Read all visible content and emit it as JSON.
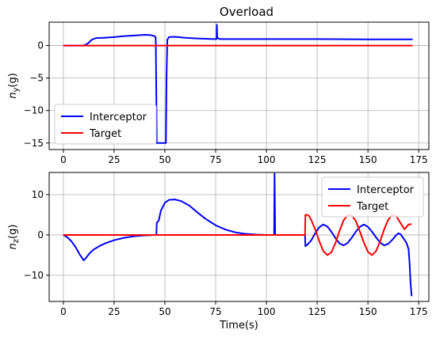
{
  "figure_title": "Overload",
  "chart_data": [
    {
      "type": "line",
      "ylabel_base": "n",
      "ylabel_sub": "y",
      "ylabel_unit": "(g)",
      "xlabel": "",
      "xlim": [
        -7,
        180
      ],
      "ylim": [
        -16,
        3.6
      ],
      "xticks": [
        0,
        25,
        50,
        75,
        100,
        125,
        150,
        175
      ],
      "yticks": [
        0,
        -5,
        -10,
        -15
      ],
      "grid": true,
      "legend": "lower-left",
      "series": [
        {
          "name": "Interceptor",
          "color": "#0000ff",
          "points": [
            [
              0,
              0
            ],
            [
              10,
              0
            ],
            [
              12,
              0.3
            ],
            [
              14,
              0.9
            ],
            [
              16,
              1.15
            ],
            [
              20,
              1.2
            ],
            [
              25,
              1.3
            ],
            [
              30,
              1.45
            ],
            [
              35,
              1.55
            ],
            [
              40,
              1.65
            ],
            [
              43,
              1.6
            ],
            [
              45,
              1.45
            ],
            [
              45.5,
              1.2
            ],
            [
              46,
              -15
            ],
            [
              47,
              -15
            ],
            [
              50,
              -15
            ],
            [
              50.5,
              -15
            ],
            [
              50.8,
              -5
            ],
            [
              51.2,
              0.9
            ],
            [
              52,
              1.3
            ],
            [
              55,
              1.35
            ],
            [
              60,
              1.2
            ],
            [
              65,
              1.1
            ],
            [
              70,
              1.05
            ],
            [
              74,
              1.0
            ],
            [
              75.5,
              1.0
            ],
            [
              75.6,
              3.2
            ],
            [
              75.8,
              1.2
            ],
            [
              77,
              1.0
            ],
            [
              80,
              1.0
            ],
            [
              100,
              1.0
            ],
            [
              125,
              1.0
            ],
            [
              150,
              0.95
            ],
            [
              172,
              0.95
            ]
          ]
        },
        {
          "name": "Target",
          "color": "#ff0000",
          "points": [
            [
              0,
              0
            ],
            [
              172,
              0
            ]
          ]
        }
      ]
    },
    {
      "type": "line",
      "ylabel_base": "n",
      "ylabel_sub": "z",
      "ylabel_unit": "(g)",
      "xlabel": "Time(s)",
      "xlim": [
        -7,
        180
      ],
      "ylim": [
        -16.5,
        15.5
      ],
      "xticks": [
        0,
        25,
        50,
        75,
        100,
        125,
        150,
        175
      ],
      "yticks": [
        10,
        0,
        -10
      ],
      "grid": true,
      "legend": "top-right",
      "series": [
        {
          "name": "Interceptor",
          "color": "#0000ff",
          "points": [
            [
              0,
              0
            ],
            [
              2,
              -0.6
            ],
            [
              4,
              -1.6
            ],
            [
              6,
              -3.0
            ],
            [
              8,
              -4.8
            ],
            [
              10,
              -6.3
            ],
            [
              11,
              -5.8
            ],
            [
              13,
              -4.5
            ],
            [
              15,
              -3.6
            ],
            [
              18,
              -2.7
            ],
            [
              21,
              -2.0
            ],
            [
              25,
              -1.3
            ],
            [
              30,
              -0.7
            ],
            [
              35,
              -0.3
            ],
            [
              40,
              -0.1
            ],
            [
              45,
              0
            ],
            [
              45.8,
              0
            ],
            [
              46,
              3.0
            ],
            [
              47,
              3.6
            ],
            [
              48,
              6.0
            ],
            [
              50,
              8.0
            ],
            [
              52,
              8.7
            ],
            [
              55,
              8.8
            ],
            [
              58,
              8.4
            ],
            [
              62,
              7.3
            ],
            [
              66,
              5.6
            ],
            [
              70,
              4.0
            ],
            [
              75,
              2.4
            ],
            [
              80,
              1.3
            ],
            [
              85,
              0.6
            ],
            [
              90,
              0.25
            ],
            [
              95,
              0.08
            ],
            [
              100,
              0
            ],
            [
              103.8,
              0
            ],
            [
              104,
              15.2
            ],
            [
              104.3,
              0
            ],
            [
              110,
              0
            ],
            [
              119,
              0
            ],
            [
              119.2,
              -2.8
            ],
            [
              120,
              -2.5
            ],
            [
              122,
              -1.4
            ],
            [
              124,
              0.4
            ],
            [
              126,
              1.9
            ],
            [
              128,
              2.6
            ],
            [
              130,
              2.1
            ],
            [
              132,
              0.8
            ],
            [
              134,
              -0.8
            ],
            [
              136,
              -2.1
            ],
            [
              138,
              -2.6
            ],
            [
              140,
              -2.0
            ],
            [
              142,
              -0.7
            ],
            [
              144,
              0.8
            ],
            [
              146,
              2.0
            ],
            [
              148,
              2.6
            ],
            [
              150,
              2.0
            ],
            [
              152,
              0.8
            ],
            [
              154,
              -0.6
            ],
            [
              156,
              -1.9
            ],
            [
              158,
              -2.6
            ],
            [
              160,
              -2.2
            ],
            [
              162,
              -1.2
            ],
            [
              164,
              0
            ],
            [
              165,
              0.4
            ],
            [
              166,
              0.2
            ],
            [
              167,
              -0.5
            ],
            [
              168,
              -1.2
            ],
            [
              169,
              -2.0
            ],
            [
              170,
              -3.5
            ],
            [
              170.5,
              -7
            ],
            [
              171,
              -12
            ],
            [
              171.5,
              -15.2
            ]
          ]
        },
        {
          "name": "Target",
          "color": "#ff0000",
          "points": [
            [
              0,
              0
            ],
            [
              45,
              0
            ],
            [
              100,
              0
            ],
            [
              119,
              0
            ],
            [
              119.2,
              5.0
            ],
            [
              120,
              5.0
            ],
            [
              121,
              4.7
            ],
            [
              122,
              3.8
            ],
            [
              124,
              1.4
            ],
            [
              126,
              -1.5
            ],
            [
              128,
              -4.0
            ],
            [
              130,
              -5.0
            ],
            [
              132,
              -4.3
            ],
            [
              134,
              -2.0
            ],
            [
              136,
              1.0
            ],
            [
              138,
              3.6
            ],
            [
              140,
              4.9
            ],
            [
              142,
              4.9
            ],
            [
              144,
              3.5
            ],
            [
              146,
              0.9
            ],
            [
              148,
              -1.9
            ],
            [
              150,
              -4.2
            ],
            [
              152,
              -5.0
            ],
            [
              154,
              -4.0
            ],
            [
              156,
              -1.6
            ],
            [
              158,
              1.4
            ],
            [
              160,
              3.8
            ],
            [
              162,
              5.0
            ],
            [
              164,
              4.6
            ],
            [
              166,
              3.0
            ],
            [
              168,
              1.4
            ],
            [
              170,
              2.6
            ],
            [
              171.5,
              2.7
            ]
          ]
        }
      ]
    }
  ]
}
